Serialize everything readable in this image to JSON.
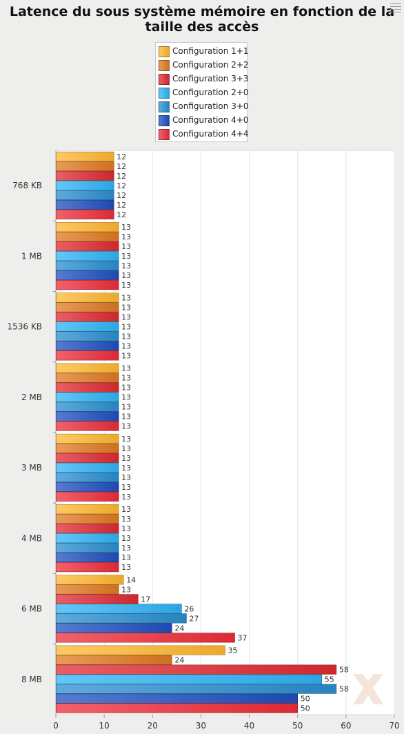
{
  "chart_data": {
    "type": "bar",
    "orientation": "horizontal",
    "title": "Latence du sous système mémoire en fonction de la taille des accès",
    "title_lines": [
      "Latence du sous système mémoire en fonction de la",
      "taille des accès"
    ],
    "categories": [
      "768 KB",
      "1 MB",
      "1536 KB",
      "2 MB",
      "3 MB",
      "4 MB",
      "6 MB",
      "8 MB"
    ],
    "series": [
      {
        "name": "Configuration 1+1",
        "color": "#ffb830",
        "values": [
          12,
          13,
          13,
          13,
          13,
          13,
          14,
          35
        ]
      },
      {
        "name": "Configuration 2+2",
        "color": "#e07a22",
        "values": [
          12,
          13,
          13,
          13,
          13,
          13,
          13,
          24
        ]
      },
      {
        "name": "Configuration 3+3",
        "color": "#e02a32",
        "values": [
          12,
          13,
          13,
          13,
          13,
          13,
          17,
          58
        ]
      },
      {
        "name": "Configuration 2+0",
        "color": "#2fb4f6",
        "values": [
          12,
          13,
          13,
          13,
          13,
          13,
          26,
          55
        ]
      },
      {
        "name": "Configuration 3+0",
        "color": "#2b8ed0",
        "values": [
          12,
          13,
          13,
          13,
          13,
          13,
          27,
          58
        ]
      },
      {
        "name": "Configuration 4+0",
        "color": "#1f4fbf",
        "values": [
          12,
          13,
          13,
          13,
          13,
          13,
          24,
          50
        ]
      },
      {
        "name": "Configuration 4+4",
        "color": "#ee2e3a",
        "values": [
          12,
          13,
          13,
          13,
          13,
          13,
          37,
          50
        ]
      }
    ],
    "x_ticks": [
      0,
      10,
      20,
      30,
      40,
      50,
      60,
      70
    ],
    "xlim": [
      0,
      70
    ],
    "grid": true,
    "legend_position": "top-center"
  }
}
